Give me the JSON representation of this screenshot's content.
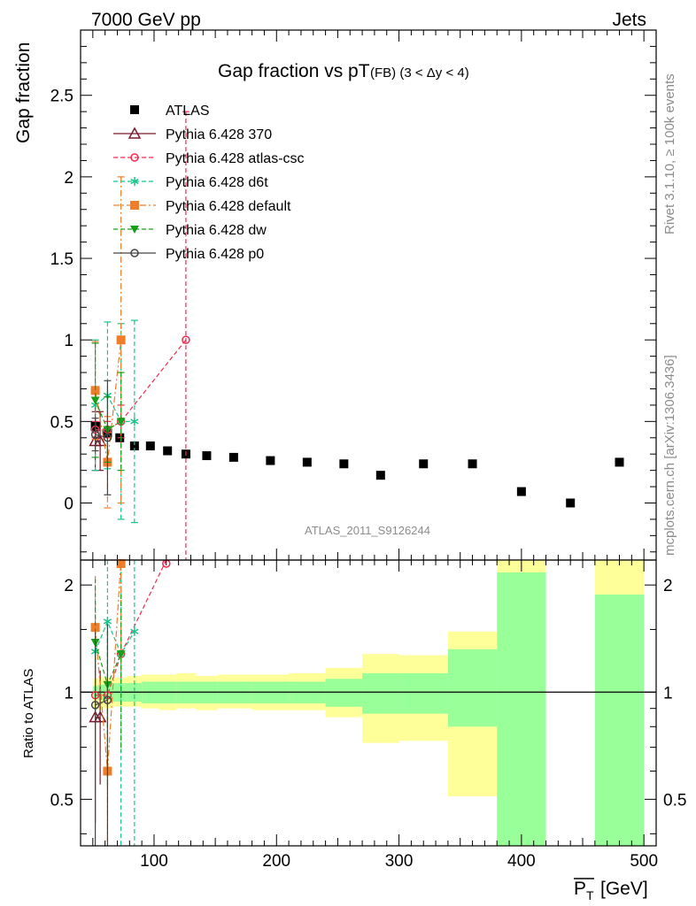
{
  "header": {
    "left": "7000 GeV pp",
    "right": "Jets",
    "side_top": "Rivet 3.1.10, ≥ 100k events",
    "side_bottom": "mcplots.cern.ch [arXiv:1306.3436]",
    "watermark": "ATLAS_2011_S9126244"
  },
  "chart_data": [
    {
      "type": "scatter",
      "title": "Gap fraction vs pT",
      "title_suffix": "(FB) (3 < Δy < 4)",
      "ylabel": "Gap fraction",
      "xlim": [
        40,
        510
      ],
      "ylim": [
        -0.35,
        2.9
      ],
      "x_ticks": [
        "100",
        "200",
        "300",
        "400",
        "500"
      ],
      "y_ticks": [
        "0",
        "0.5",
        "1",
        "1.5",
        "2",
        "2.5"
      ],
      "legend_position": "top-left",
      "series": [
        {
          "name": "ATLAS",
          "color": "#000000",
          "marker": "filled-square",
          "x": [
            52,
            62,
            72,
            84,
            97,
            111,
            126,
            143,
            165,
            195,
            225,
            255,
            285,
            320,
            360,
            400,
            440,
            480
          ],
          "y": [
            0.47,
            0.43,
            0.4,
            0.35,
            0.35,
            0.32,
            0.3,
            0.29,
            0.28,
            0.26,
            0.25,
            0.24,
            0.17,
            0.24,
            0.24,
            0.07,
            0.0,
            0.25
          ]
        },
        {
          "name": "Pythia 6.428 370",
          "color": "#7a1a2e",
          "marker": "open-triangle",
          "x": [
            52,
            56
          ],
          "y": [
            0.38,
            0.38
          ],
          "err": [
            0.18,
            0.18
          ]
        },
        {
          "name": "Pythia 6.428 atlas-csc",
          "color": "#ee2c4e",
          "marker": "open-circle",
          "x": [
            52,
            62,
            73,
            126
          ],
          "y": [
            0.45,
            0.45,
            0.5,
            1.0
          ],
          "err": [
            0.05,
            0.05,
            0.1,
            1.4
          ]
        },
        {
          "name": "Pythia 6.428 d6t",
          "color": "#19c48c",
          "marker": "star",
          "x": [
            52,
            62,
            73,
            84
          ],
          "y": [
            0.6,
            0.66,
            0.5,
            0.5
          ],
          "err": [
            0.4,
            0.45,
            0.6,
            0.62
          ]
        },
        {
          "name": "Pythia 6.428 default",
          "color": "#f07d2a",
          "marker": "filled-square",
          "x": [
            52,
            62,
            73
          ],
          "y": [
            0.69,
            0.25,
            1.0
          ],
          "err": [
            0.3,
            0.28,
            1.0
          ]
        },
        {
          "name": "Pythia 6.428 dw",
          "color": "#1a9e1a",
          "marker": "filled-triangle-down",
          "x": [
            52,
            62,
            73
          ],
          "y": [
            0.63,
            0.45,
            0.5
          ],
          "err": [
            0.35,
            0.2,
            0.3
          ]
        },
        {
          "name": "Pythia 6.428 p0",
          "color": "#444444",
          "marker": "open-circle",
          "x": [
            52,
            62
          ],
          "y": [
            0.42,
            0.4
          ],
          "err": [
            0.1,
            0.35
          ]
        }
      ]
    },
    {
      "type": "area",
      "ylabel": "Ratio to ATLAS",
      "xlabel": "P_T [GeV]",
      "xlim": [
        40,
        510
      ],
      "ylim": [
        0.37,
        2.35
      ],
      "log_y": true,
      "y_ticks": [
        "0.5",
        "1",
        "2"
      ],
      "bands": {
        "bins": [
          [
            50,
            54
          ],
          [
            54,
            58
          ],
          [
            58,
            66
          ],
          [
            66,
            78
          ],
          [
            78,
            90
          ],
          [
            90,
            104
          ],
          [
            104,
            118
          ],
          [
            118,
            134
          ],
          [
            134,
            152
          ],
          [
            152,
            180
          ],
          [
            180,
            210
          ],
          [
            210,
            240
          ],
          [
            240,
            270
          ],
          [
            270,
            300
          ],
          [
            300,
            340
          ],
          [
            340,
            380
          ],
          [
            380,
            420
          ],
          [
            460,
            500
          ]
        ],
        "green_lo": [
          0.96,
          0.95,
          0.95,
          0.94,
          0.94,
          0.93,
          0.93,
          0.93,
          0.93,
          0.93,
          0.93,
          0.93,
          0.91,
          0.87,
          0.87,
          0.8,
          0.35,
          0.35
        ],
        "green_hi": [
          1.04,
          1.05,
          1.05,
          1.06,
          1.06,
          1.07,
          1.07,
          1.07,
          1.07,
          1.07,
          1.07,
          1.07,
          1.09,
          1.13,
          1.13,
          1.32,
          2.17,
          1.88
        ],
        "yellow_lo": [
          0.9,
          0.89,
          0.9,
          0.91,
          0.91,
          0.9,
          0.89,
          0.9,
          0.89,
          0.9,
          0.89,
          0.89,
          0.85,
          0.72,
          0.73,
          0.51,
          0.35,
          0.35
        ],
        "yellow_hi": [
          1.09,
          1.1,
          1.1,
          1.1,
          1.11,
          1.12,
          1.12,
          1.13,
          1.11,
          1.12,
          1.12,
          1.13,
          1.17,
          1.28,
          1.27,
          1.48,
          2.35,
          2.35
        ]
      },
      "series": [
        {
          "name": "Pythia 6.428 370",
          "x": [
            52,
            56
          ],
          "y": [
            0.85,
            0.85
          ],
          "err": [
            0.42,
            0.3
          ]
        },
        {
          "name": "Pythia 6.428 atlas-csc",
          "x": [
            52,
            62,
            73,
            110
          ],
          "y": [
            0.98,
            0.98,
            1.28,
            2.35
          ],
          "err": [
            0.1,
            0.1,
            0.2,
            0
          ]
        },
        {
          "name": "Pythia 6.428 d6t",
          "x": [
            52,
            62,
            73,
            84
          ],
          "y": [
            1.3,
            1.58,
            1.28,
            1.48
          ],
          "err": [
            0.5,
            0.9,
            1.0,
            1.2
          ]
        },
        {
          "name": "Pythia 6.428 default",
          "x": [
            52,
            62,
            73
          ],
          "y": [
            1.52,
            0.6,
            2.35
          ],
          "err": [
            0.6,
            0.5,
            1.2
          ]
        },
        {
          "name": "Pythia 6.428 dw",
          "x": [
            52,
            62,
            73
          ],
          "y": [
            1.38,
            1.05,
            1.28
          ],
          "err": [
            0.7,
            0.5,
            0.6
          ]
        },
        {
          "name": "Pythia 6.428 p0",
          "x": [
            52,
            62
          ],
          "y": [
            0.92,
            0.95
          ],
          "err": [
            0.55,
            0.6
          ]
        }
      ]
    }
  ]
}
